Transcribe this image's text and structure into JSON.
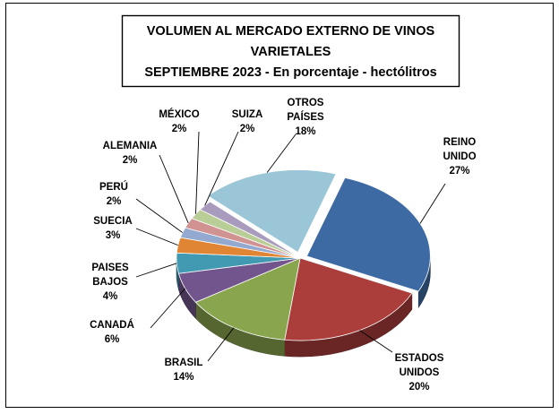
{
  "chart_data": {
    "type": "pie",
    "title_lines": [
      "VOLUMEN AL MERCADO EXTERNO DE VINOS",
      "VARIETALES",
      "SEPTIEMBRE 2023 - En porcentaje - hectólitros"
    ],
    "slices": [
      {
        "label": "REINO UNIDO",
        "label_lines": [
          "REINO",
          "UNIDO"
        ],
        "pct_label": "27%",
        "value": 27,
        "color": "#3e6aa3"
      },
      {
        "label": "ESTADOS UNIDOS",
        "label_lines": [
          "ESTADOS",
          "UNIDOS"
        ],
        "pct_label": "20%",
        "value": 20,
        "color": "#ab3e3b"
      },
      {
        "label": "BRASIL",
        "label_lines": [
          "BRASIL"
        ],
        "pct_label": "14%",
        "value": 14,
        "color": "#89a54e"
      },
      {
        "label": "CANADÁ",
        "label_lines": [
          "CANADÁ"
        ],
        "pct_label": "6%",
        "value": 6,
        "color": "#72558c"
      },
      {
        "label": "PAISES BAJOS",
        "label_lines": [
          "PAISES",
          "BAJOS"
        ],
        "pct_label": "4%",
        "value": 4,
        "color": "#4199b2"
      },
      {
        "label": "SUECIA",
        "label_lines": [
          "SUECIA"
        ],
        "pct_label": "3%",
        "value": 3,
        "color": "#e08533"
      },
      {
        "label": "PERÚ",
        "label_lines": [
          "PERÚ"
        ],
        "pct_label": "2%",
        "value": 2,
        "color": "#93a9cf"
      },
      {
        "label": "ALEMANIA",
        "label_lines": [
          "ALEMANIA"
        ],
        "pct_label": "2%",
        "value": 2,
        "color": "#d19392"
      },
      {
        "label": "MÉXICO",
        "label_lines": [
          "MÉXICO"
        ],
        "pct_label": "2%",
        "value": 2,
        "color": "#b9cd96"
      },
      {
        "label": "SUIZA",
        "label_lines": [
          "SUIZA"
        ],
        "pct_label": "2%",
        "value": 2,
        "color": "#a99bbd"
      },
      {
        "label": "OTROS PAÍSES",
        "label_lines": [
          "OTROS",
          "PAÍSES"
        ],
        "pct_label": "18%",
        "value": 18,
        "color": "#9bc6d7"
      }
    ]
  }
}
